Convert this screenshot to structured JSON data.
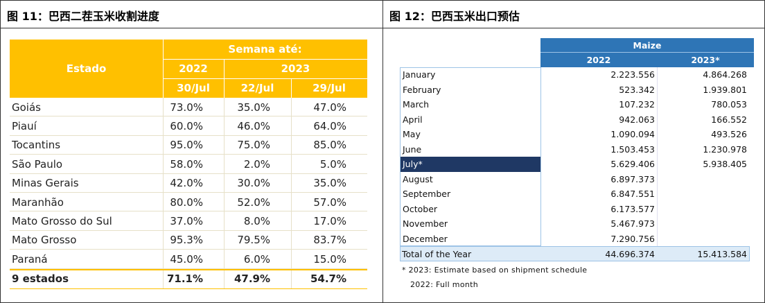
{
  "left": {
    "title": "图 11：巴西二茬玉米收割进度",
    "table": {
      "header": {
        "estado": "Estado",
        "group": "Semana até:",
        "years": [
          "2022",
          "2023"
        ],
        "dates": [
          "30/Jul",
          "22/Jul",
          "29/Jul"
        ]
      },
      "rows": [
        [
          "Goiás",
          "73.0%",
          "35.0%",
          "47.0%"
        ],
        [
          "Piauí",
          "60.0%",
          "46.0%",
          "64.0%"
        ],
        [
          "Tocantins",
          "95.0%",
          "75.0%",
          "85.0%"
        ],
        [
          "São Paulo",
          "58.0%",
          "2.0%",
          "5.0%"
        ],
        [
          "Minas Gerais",
          "42.0%",
          "30.0%",
          "35.0%"
        ],
        [
          "Maranhão",
          "80.0%",
          "52.0%",
          "57.0%"
        ],
        [
          "Mato Grosso do Sul",
          "37.0%",
          "8.0%",
          "17.0%"
        ],
        [
          "Mato Grosso",
          "95.3%",
          "79.5%",
          "83.7%"
        ],
        [
          "Paraná",
          "45.0%",
          "6.0%",
          "15.0%"
        ]
      ],
      "total": [
        "9 estados",
        "71.1%",
        "47.9%",
        "54.7%"
      ]
    }
  },
  "right": {
    "title": "图 12：巴西玉米出口预估",
    "table": {
      "header": {
        "group": "Maize",
        "columns": [
          "2022",
          "2023*"
        ]
      },
      "rows": [
        [
          "January",
          "2.223.556",
          "4.864.268"
        ],
        [
          "February",
          "523.342",
          "1.939.801"
        ],
        [
          "March",
          "107.232",
          "780.053"
        ],
        [
          "April",
          "942.063",
          "166.552"
        ],
        [
          "May",
          "1.090.094",
          "493.526"
        ],
        [
          "June",
          "1.503.453",
          "1.230.978"
        ],
        [
          "July*",
          "5.629.406",
          "5.938.405"
        ],
        [
          "August",
          "6.897.373"
        ],
        [
          "September",
          "6.847.551"
        ],
        [
          "October",
          "6.173.577"
        ],
        [
          "November",
          "5.467.973"
        ],
        [
          "December",
          "7.290.756"
        ]
      ],
      "total": [
        "Total of the Year",
        "44.696.374",
        "15.413.584"
      ],
      "notes": [
        "* 2023: Estimate based on shipment schedule",
        "2022: Full month"
      ]
    }
  }
}
